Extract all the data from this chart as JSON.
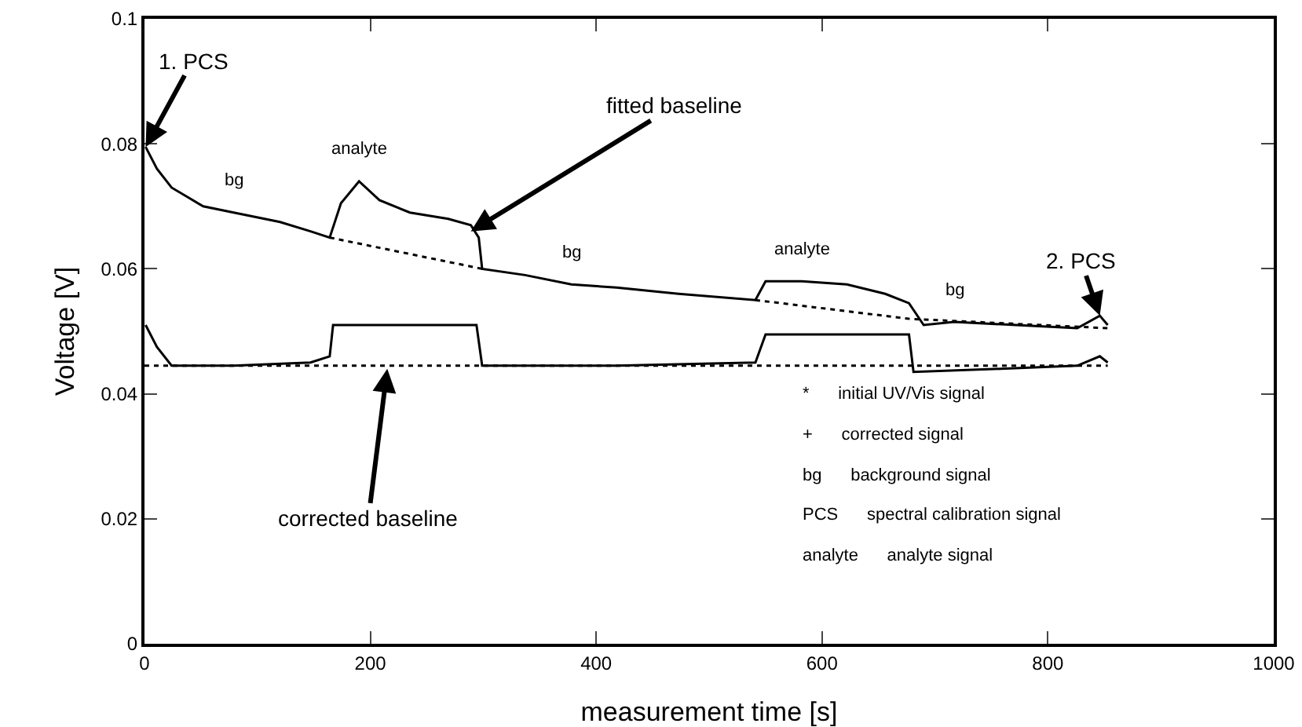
{
  "chart_data": {
    "type": "line",
    "xlabel": "measurement time [s]",
    "ylabel": "Voltage [V]",
    "xlim": [
      0,
      1000
    ],
    "xticks": [
      0,
      200,
      400,
      600,
      800,
      1000
    ],
    "ylim": [
      0,
      0.1
    ],
    "yticks": [
      0,
      0.02,
      0.04,
      0.06,
      0.08,
      0.1
    ],
    "line_style": "solid",
    "marker": "none",
    "series": [
      {
        "color": "#000000",
        "x": [
          1,
          11,
          24,
          52,
          79,
          120,
          147,
          164,
          174,
          190,
          208,
          235,
          269,
          289,
          296,
          299,
          337,
          378,
          418,
          473,
          541,
          550,
          582,
          622,
          656,
          677,
          690,
          717,
          772,
          826,
          846,
          853
        ],
        "values": [
          0.0795,
          0.076,
          0.073,
          0.07,
          0.069,
          0.0675,
          0.066,
          0.065,
          0.0705,
          0.074,
          0.071,
          0.069,
          0.068,
          0.067,
          0.065,
          0.06,
          0.059,
          0.0575,
          0.057,
          0.056,
          0.055,
          0.058,
          0.058,
          0.0575,
          0.056,
          0.0545,
          0.051,
          0.0515,
          0.051,
          0.0505,
          0.0525,
          0.051
        ]
      },
      {
        "color": "#000000",
        "x": [
          1,
          11,
          24,
          79,
          147,
          164,
          167,
          215,
          269,
          294,
          299,
          418,
          541,
          550,
          677,
          681,
          758,
          826,
          846,
          853
        ],
        "values": [
          0.051,
          0.0475,
          0.0445,
          0.0445,
          0.045,
          0.046,
          0.051,
          0.051,
          0.051,
          0.051,
          0.0445,
          0.0445,
          0.045,
          0.0495,
          0.0495,
          0.0435,
          0.044,
          0.0445,
          0.046,
          0.045
        ]
      },
      {
        "color": "#000000",
        "line_style": "dotted",
        "x": [
          164,
          299,
          null,
          541,
          677,
          853
        ],
        "values": [
          0.065,
          0.06,
          null,
          0.055,
          0.052,
          0.0505
        ]
      },
      {
        "color": "#000000",
        "line_style": "dotted",
        "x": [
          0,
          853
        ],
        "values": [
          0.0445,
          0.0445
        ]
      }
    ],
    "annotations": [
      {
        "text": "1. PCS",
        "x": 1,
        "y": 0.0795
      },
      {
        "text": "fitted baseline",
        "x": 289,
        "y": 0.066
      },
      {
        "text": "corrected baseline",
        "x": 215,
        "y": 0.044
      },
      {
        "text": "2. PCS",
        "x": 846,
        "y": 0.0525
      },
      {
        "text": "bg",
        "x": 79,
        "y": 0.069
      },
      {
        "text": "analyte",
        "x": 190,
        "y": 0.074
      },
      {
        "text": "bg",
        "x": 378,
        "y": 0.0575
      },
      {
        "text": "analyte",
        "x": 582,
        "y": 0.058
      },
      {
        "text": "bg",
        "x": 717,
        "y": 0.0515
      },
      "*      initial UV/Vis signal",
      "+      corrected signal",
      "bg      background signal",
      "PCS      spectral calibration signal",
      "analyte      analyte signal"
    ]
  }
}
